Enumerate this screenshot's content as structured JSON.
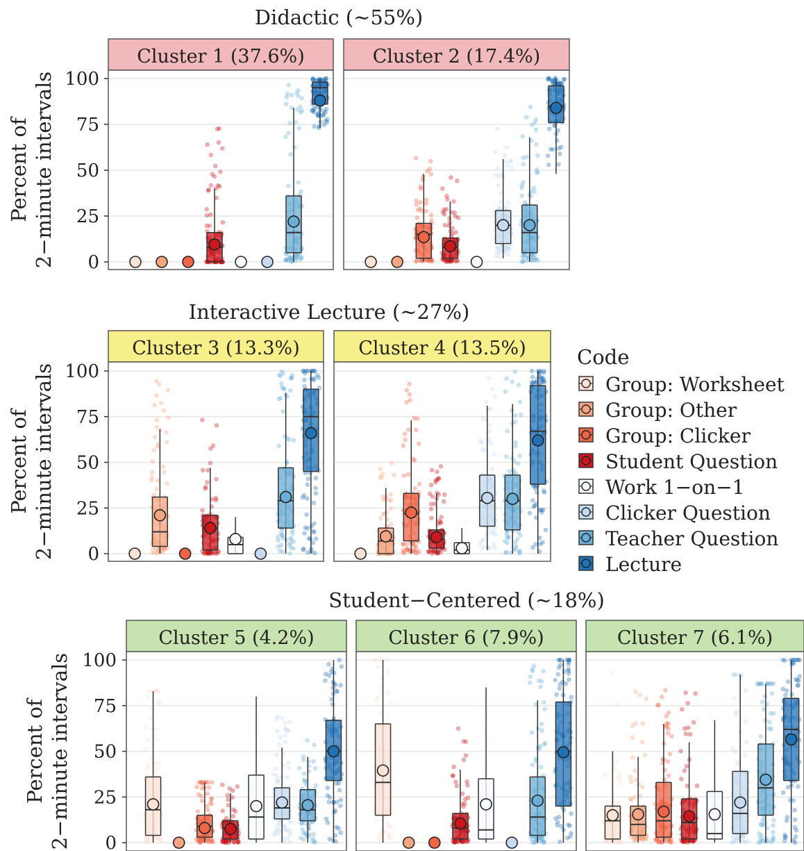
{
  "colors": {
    "strip_red": "#f2b9bc",
    "strip_yellow": "#f7f08a",
    "strip_green": "#c8e3b0",
    "grid": "#e6e6e6",
    "panel_border": "#555555",
    "codes": [
      "#fbe3d6",
      "#f4a582",
      "#ef6548",
      "#cb181d",
      "#f7fbff",
      "#c6dbef",
      "#6baed6",
      "#2171b5"
    ]
  },
  "chart_data": {
    "type": "box",
    "ylabel_line1": "Percent of",
    "ylabel_line2": "2−minute intervals",
    "yticks": [
      0,
      25,
      50,
      75,
      100
    ],
    "ylim": [
      -3,
      103
    ],
    "legend": {
      "title": "Code",
      "position": "right",
      "items": [
        "Group: Worksheet",
        "Group: Other",
        "Group: Clicker",
        "Student Question",
        "Work 1−on−1",
        "Clicker Question",
        "Teacher Question",
        "Lecture"
      ]
    },
    "groups": [
      {
        "title": "Didactic (~55%)",
        "panels": [
          {
            "strip": "Cluster 1 (37.6%)",
            "strip_color": "red",
            "boxes": [
              {
                "code": 0,
                "mean": 0
              },
              {
                "code": 1,
                "mean": 0
              },
              {
                "code": 2,
                "mean": 0
              },
              {
                "code": 3,
                "q1": 0,
                "median": 8,
                "q3": 16,
                "wlo": 0,
                "whi": 40,
                "mean": 9.5,
                "pmax": 73
              },
              {
                "code": 4,
                "mean": 0
              },
              {
                "code": 5,
                "mean": 0
              },
              {
                "code": 6,
                "q1": 5,
                "median": 16,
                "q3": 36,
                "wlo": 0,
                "whi": 84,
                "mean": 22,
                "pmax": 98
              },
              {
                "code": 7,
                "q1": 86,
                "median": 95,
                "q3": 98,
                "wlo": 73,
                "whi": 100,
                "mean": 88,
                "pmax": 100
              }
            ]
          },
          {
            "strip": "Cluster 2 (17.4%)",
            "strip_color": "red",
            "boxes": [
              {
                "code": 0,
                "mean": 0
              },
              {
                "code": 1,
                "mean": 0
              },
              {
                "code": 2,
                "q1": 2,
                "median": 15,
                "q3": 21,
                "wlo": 0,
                "whi": 48,
                "mean": 13.5,
                "pmax": 57
              },
              {
                "code": 3,
                "q1": 2,
                "median": 8,
                "q3": 13,
                "wlo": 0,
                "whi": 33,
                "mean": 8.5,
                "pmax": 46
              },
              {
                "code": 4,
                "mean": 0
              },
              {
                "code": 5,
                "q1": 10,
                "median": 20,
                "q3": 28,
                "wlo": 2,
                "whi": 56,
                "mean": 20,
                "pmax": 80
              },
              {
                "code": 6,
                "q1": 5,
                "median": 16,
                "q3": 31,
                "wlo": 0,
                "whi": 68,
                "mean": 20,
                "pmax": 86
              },
              {
                "code": 7,
                "q1": 76,
                "median": 85,
                "q3": 96,
                "wlo": 48,
                "whi": 100,
                "mean": 84,
                "pmax": 100
              }
            ]
          }
        ]
      },
      {
        "title": "Interactive Lecture (~27%)",
        "panels": [
          {
            "strip": "Cluster 3 (13.3%)",
            "strip_color": "yellow",
            "boxes": [
              {
                "code": 0,
                "mean": 0
              },
              {
                "code": 1,
                "q1": 4,
                "median": 12,
                "q3": 31,
                "wlo": 0,
                "whi": 68,
                "mean": 21,
                "pmax": 96
              },
              {
                "code": 2,
                "mean": 0
              },
              {
                "code": 3,
                "q1": 2,
                "median": 14,
                "q3": 21,
                "wlo": 0,
                "whi": 47,
                "mean": 14,
                "pmax": 83
              },
              {
                "code": 4,
                "q1": 0,
                "median": 5,
                "q3": 9,
                "wlo": 0,
                "whi": 20,
                "mean": 8,
                "pmax": 95
              },
              {
                "code": 5,
                "mean": 0
              },
              {
                "code": 6,
                "q1": 14,
                "median": 29,
                "q3": 47,
                "wlo": 0,
                "whi": 88,
                "mean": 31,
                "pmax": 100
              },
              {
                "code": 7,
                "q1": 45,
                "median": 75,
                "q3": 90,
                "wlo": 0,
                "whi": 100,
                "mean": 66,
                "pmax": 100
              }
            ]
          },
          {
            "strip": "Cluster 4 (13.5%)",
            "strip_color": "yellow",
            "boxes": [
              {
                "code": 0,
                "mean": 0
              },
              {
                "code": 1,
                "q1": 0,
                "median": 7,
                "q3": 14,
                "wlo": 0,
                "whi": 36,
                "mean": 9.5,
                "pmax": 50
              },
              {
                "code": 2,
                "q1": 7,
                "median": 22,
                "q3": 33,
                "wlo": 0,
                "whi": 73,
                "mean": 22.5,
                "pmax": 95
              },
              {
                "code": 3,
                "q1": 3,
                "median": 8,
                "q3": 13,
                "wlo": 0,
                "whi": 33,
                "mean": 9,
                "pmax": 48
              },
              {
                "code": 4,
                "q1": 0,
                "median": 2,
                "q3": 6,
                "wlo": 0,
                "whi": 14,
                "mean": 3,
                "pmax": 20
              },
              {
                "code": 5,
                "q1": 15,
                "median": 29,
                "q3": 43,
                "wlo": 2,
                "whi": 81,
                "mean": 30.5,
                "pmax": 100
              },
              {
                "code": 6,
                "q1": 13,
                "median": 29,
                "q3": 43,
                "wlo": 0,
                "whi": 82,
                "mean": 30,
                "pmax": 100
              },
              {
                "code": 7,
                "q1": 38,
                "median": 67,
                "q3": 92,
                "wlo": 0,
                "whi": 100,
                "mean": 62,
                "pmax": 100
              }
            ]
          }
        ]
      },
      {
        "title": "Student−Centered (~18%)",
        "panels": [
          {
            "strip": "Cluster 5 (4.2%)",
            "strip_color": "green",
            "boxes": [
              {
                "code": 0,
                "q1": 4,
                "median": 18,
                "q3": 36,
                "wlo": 0,
                "whi": 83,
                "mean": 21,
                "pmax": 83
              },
              {
                "code": 1,
                "mean": 0
              },
              {
                "code": 2,
                "q1": 3,
                "median": 9,
                "q3": 15,
                "wlo": 0,
                "whi": 33,
                "mean": 8,
                "pmax": 33
              },
              {
                "code": 3,
                "q1": 2,
                "median": 8,
                "q3": 12,
                "wlo": 0,
                "whi": 27,
                "mean": 7.5,
                "pmax": 32
              },
              {
                "code": 4,
                "q1": 2,
                "median": 14,
                "q3": 37,
                "wlo": 0,
                "whi": 80,
                "mean": 20,
                "pmax": 80
              },
              {
                "code": 5,
                "q1": 13,
                "median": 19,
                "q3": 30,
                "wlo": 0,
                "whi": 52,
                "mean": 22,
                "pmax": 70
              },
              {
                "code": 6,
                "q1": 12,
                "median": 18,
                "q3": 29,
                "wlo": 0,
                "whi": 47,
                "mean": 20.5,
                "pmax": 62
              },
              {
                "code": 7,
                "q1": 34,
                "median": 50,
                "q3": 67,
                "wlo": 0,
                "whi": 100,
                "mean": 50,
                "pmax": 100
              }
            ]
          },
          {
            "strip": "Cluster 6 (7.9%)",
            "strip_color": "green",
            "boxes": [
              {
                "code": 0,
                "q1": 15,
                "median": 33,
                "q3": 65,
                "wlo": 0,
                "whi": 100,
                "mean": 39.5,
                "pmax": 100
              },
              {
                "code": 1,
                "mean": 0
              },
              {
                "code": 2,
                "mean": 0
              },
              {
                "code": 3,
                "q1": 2,
                "median": 8,
                "q3": 16,
                "wlo": 0,
                "whi": 40,
                "mean": 10.5,
                "pmax": 66
              },
              {
                "code": 4,
                "q1": 2,
                "median": 7,
                "q3": 35,
                "wlo": 0,
                "whi": 85,
                "mean": 21,
                "pmax": 100
              },
              {
                "code": 5,
                "mean": 0
              },
              {
                "code": 6,
                "q1": 4,
                "median": 14,
                "q3": 36,
                "wlo": 0,
                "whi": 78,
                "mean": 23,
                "pmax": 98
              },
              {
                "code": 7,
                "q1": 20,
                "median": 50,
                "q3": 77,
                "wlo": 0,
                "whi": 100,
                "mean": 49.5,
                "pmax": 100
              }
            ]
          },
          {
            "strip": "Cluster 7 (6.1%)",
            "strip_color": "green",
            "boxes": [
              {
                "code": 0,
                "q1": 2,
                "median": 12,
                "q3": 20,
                "wlo": 0,
                "whi": 50,
                "mean": 15,
                "pmax": 100
              },
              {
                "code": 1,
                "q1": 4,
                "median": 10,
                "q3": 20,
                "wlo": 0,
                "whi": 47,
                "mean": 15.5,
                "pmax": 100
              },
              {
                "code": 2,
                "q1": 3,
                "median": 12,
                "q3": 33,
                "wlo": 0,
                "whi": 65,
                "mean": 17,
                "pmax": 84
              },
              {
                "code": 3,
                "q1": 2,
                "median": 11,
                "q3": 24,
                "wlo": 0,
                "whi": 55,
                "mean": 14.5,
                "pmax": 87
              },
              {
                "code": 4,
                "q1": 2,
                "median": 5,
                "q3": 28,
                "wlo": 0,
                "whi": 67,
                "mean": 15.5,
                "pmax": 78
              },
              {
                "code": 5,
                "q1": 5,
                "median": 16,
                "q3": 39,
                "wlo": 0,
                "whi": 92,
                "mean": 22,
                "pmax": 92
              },
              {
                "code": 6,
                "q1": 15,
                "median": 30,
                "q3": 54,
                "wlo": 0,
                "whi": 87,
                "mean": 34.5,
                "pmax": 87
              },
              {
                "code": 7,
                "q1": 34,
                "median": 62,
                "q3": 79,
                "wlo": 0,
                "whi": 100,
                "mean": 56.5,
                "pmax": 100
              }
            ]
          }
        ]
      }
    ]
  }
}
